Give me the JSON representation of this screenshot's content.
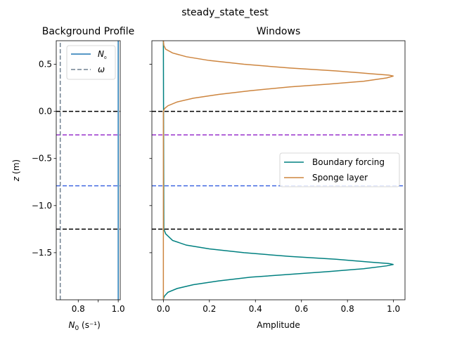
{
  "figure": {
    "suptitle": "steady_state_test"
  },
  "chart_data": [
    {
      "type": "line",
      "title": "Background Profile",
      "xlabel": "N₀ (s⁻¹)",
      "ylabel": "z (m)",
      "xlim": [
        0.69,
        1.01
      ],
      "ylim": [
        -2.0,
        0.75
      ],
      "xticks": [
        0.8,
        0.9,
        1.0
      ],
      "xtick_labels": [
        "0.8",
        "",
        "1.0"
      ],
      "yticks": [
        -1.5,
        -1.0,
        -0.5,
        0.0,
        0.5
      ],
      "ytick_labels": [
        "−1.5",
        "−1.0",
        "−0.5",
        "0.0",
        "0.5"
      ],
      "grid": false,
      "legend": {
        "position": "upper-right",
        "entries": [
          "N₀",
          "ω"
        ]
      },
      "series": [
        {
          "name": "N₀",
          "color": "#1f77b4",
          "style": "solid",
          "x": [
            1.0,
            1.0
          ],
          "y": [
            -2.0,
            0.75
          ]
        },
        {
          "name": "ω",
          "color": "#708090",
          "style": "dashed",
          "x": [
            0.71,
            0.71
          ],
          "y": [
            -2.0,
            0.75
          ]
        }
      ],
      "hlines": [
        {
          "y": 0.0,
          "color": "#000000",
          "style": "dashed"
        },
        {
          "y": -0.25,
          "color": "#9932cc",
          "style": "dashed"
        },
        {
          "y": -0.79,
          "color": "#4169e1",
          "style": "dashed"
        },
        {
          "y": -1.25,
          "color": "#000000",
          "style": "dashed"
        }
      ]
    },
    {
      "type": "line",
      "title": "Windows",
      "xlabel": "Amplitude",
      "ylabel": "",
      "xlim": [
        -0.05,
        1.05
      ],
      "ylim": [
        -2.0,
        0.75
      ],
      "xticks": [
        0.0,
        0.2,
        0.4,
        0.6,
        0.8,
        1.0
      ],
      "xtick_labels": [
        "0.0",
        "0.2",
        "0.4",
        "0.6",
        "0.8",
        "1.0"
      ],
      "grid": false,
      "legend": {
        "position": "center-right",
        "entries": [
          "Boundary forcing",
          "Sponge layer"
        ]
      },
      "series": [
        {
          "name": "Boundary forcing",
          "color": "#008080",
          "x": [
            0.0,
            0.002,
            0.01,
            0.04,
            0.1,
            0.2,
            0.35,
            0.55,
            0.75,
            0.9,
            0.98,
            1.0,
            0.97,
            0.87,
            0.72,
            0.55,
            0.38,
            0.24,
            0.13,
            0.06,
            0.02,
            0.005,
            0.0,
            0.0
          ],
          "y": [
            0.75,
            -1.25,
            -1.3,
            -1.37,
            -1.42,
            -1.46,
            -1.5,
            -1.54,
            -1.57,
            -1.6,
            -1.615,
            -1.625,
            -1.64,
            -1.67,
            -1.7,
            -1.73,
            -1.76,
            -1.8,
            -1.84,
            -1.88,
            -1.92,
            -1.96,
            -1.99,
            -2.0
          ]
        },
        {
          "name": "Sponge layer",
          "color": "#cd853f",
          "x": [
            0.0,
            0.0,
            0.005,
            0.02,
            0.06,
            0.13,
            0.24,
            0.38,
            0.55,
            0.72,
            0.87,
            0.97,
            1.0,
            0.98,
            0.9,
            0.75,
            0.55,
            0.35,
            0.2,
            0.1,
            0.04,
            0.01,
            0.002,
            0.0
          ],
          "y": [
            -2.0,
            0.0,
            0.03,
            0.06,
            0.1,
            0.14,
            0.18,
            0.22,
            0.26,
            0.29,
            0.32,
            0.355,
            0.375,
            0.385,
            0.4,
            0.43,
            0.46,
            0.5,
            0.54,
            0.58,
            0.62,
            0.66,
            0.7,
            0.75
          ]
        }
      ],
      "hlines": [
        {
          "y": 0.0,
          "color": "#000000",
          "style": "dashed"
        },
        {
          "y": -0.25,
          "color": "#9932cc",
          "style": "dashed"
        },
        {
          "y": -0.79,
          "color": "#4169e1",
          "style": "dashed"
        },
        {
          "y": -1.25,
          "color": "#000000",
          "style": "dashed"
        }
      ]
    }
  ]
}
